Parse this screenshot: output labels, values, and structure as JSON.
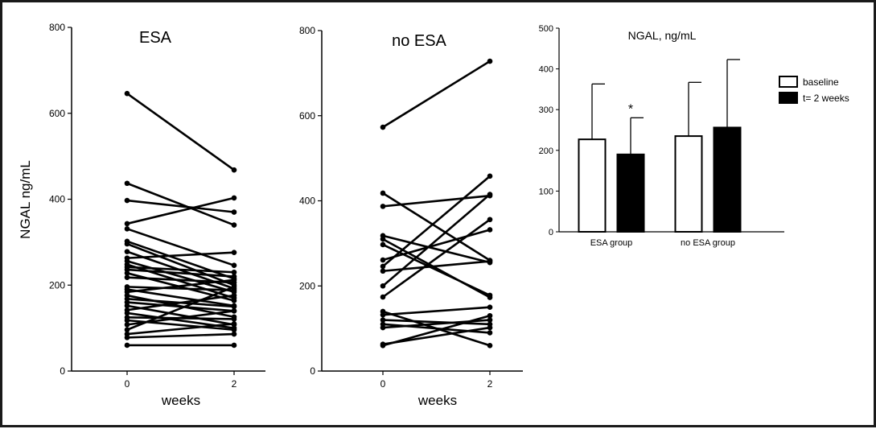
{
  "chart_data": [
    {
      "type": "line",
      "title": "ESA",
      "xlabel": "weeks",
      "ylabel": "NGAL ng/mL",
      "x_ticks": [
        "0",
        "2"
      ],
      "y_ticks": [
        "0",
        "200",
        "400",
        "600",
        "800"
      ],
      "ylim": [
        0,
        800
      ],
      "series": [
        {
          "values": [
            646,
            468
          ]
        },
        {
          "values": [
            437,
            340
          ]
        },
        {
          "values": [
            397,
            370
          ]
        },
        {
          "values": [
            343,
            403
          ]
        },
        {
          "values": [
            331,
            246
          ]
        },
        {
          "values": [
            302,
            215
          ]
        },
        {
          "values": [
            296,
            200
          ]
        },
        {
          "values": [
            278,
            192
          ]
        },
        {
          "values": [
            263,
            276
          ]
        },
        {
          "values": [
            256,
            184
          ]
        },
        {
          "values": [
            248,
            170
          ]
        },
        {
          "values": [
            242,
            230
          ]
        },
        {
          "values": [
            236,
            220
          ]
        },
        {
          "values": [
            228,
            164
          ]
        },
        {
          "values": [
            218,
            206
          ]
        },
        {
          "values": [
            196,
            188
          ]
        },
        {
          "values": [
            190,
            152
          ]
        },
        {
          "values": [
            184,
            212
          ]
        },
        {
          "values": [
            176,
            126
          ]
        },
        {
          "values": [
            168,
            150
          ]
        },
        {
          "values": [
            160,
            140
          ]
        },
        {
          "values": [
            152,
            108
          ]
        },
        {
          "values": [
            142,
            176
          ]
        },
        {
          "values": [
            135,
            100
          ]
        },
        {
          "values": [
            125,
            121
          ]
        },
        {
          "values": [
            118,
            96
          ]
        },
        {
          "values": [
            108,
            140
          ]
        },
        {
          "values": [
            96,
            196
          ]
        },
        {
          "values": [
            86,
            110
          ]
        },
        {
          "values": [
            78,
            86
          ]
        },
        {
          "values": [
            60,
            60
          ]
        }
      ]
    },
    {
      "type": "line",
      "title": "no ESA",
      "xlabel": "weeks",
      "x_ticks": [
        "0",
        "2"
      ],
      "y_ticks": [
        "0",
        "200",
        "400",
        "600",
        "800"
      ],
      "ylim": [
        0,
        800
      ],
      "series": [
        {
          "values": [
            573,
            728
          ]
        },
        {
          "values": [
            418,
            260
          ]
        },
        {
          "values": [
            387,
            412
          ]
        },
        {
          "values": [
            318,
            255
          ]
        },
        {
          "values": [
            310,
            173
          ]
        },
        {
          "values": [
            297,
            178
          ]
        },
        {
          "values": [
            261,
            332
          ]
        },
        {
          "values": [
            246,
            458
          ]
        },
        {
          "values": [
            235,
            258
          ]
        },
        {
          "values": [
            200,
            415
          ]
        },
        {
          "values": [
            174,
            356
          ]
        },
        {
          "values": [
            140,
            60
          ]
        },
        {
          "values": [
            132,
            150
          ]
        },
        {
          "values": [
            120,
            110
          ]
        },
        {
          "values": [
            110,
            90
          ]
        },
        {
          "values": [
            102,
            120
          ]
        },
        {
          "values": [
            63,
            102
          ]
        },
        {
          "values": [
            60,
            130
          ]
        }
      ]
    },
    {
      "type": "bar",
      "title": "NGAL, ng/mL",
      "categories": [
        "ESA group",
        "no ESA group"
      ],
      "y_ticks": [
        "0",
        "100",
        "200",
        "300",
        "400",
        "500"
      ],
      "ylim": [
        0,
        500
      ],
      "legend_position": "right",
      "series": [
        {
          "name": "baseline",
          "color": "#ffffff",
          "values": [
            227,
            235
          ],
          "error_upper": [
            363,
            367
          ]
        },
        {
          "name": "t= 2 weeks",
          "color": "#000000",
          "values": [
            190,
            256
          ],
          "error_upper": [
            280,
            423
          ]
        }
      ],
      "annotations": [
        {
          "text": "*",
          "category": "ESA group",
          "series": "t= 2 weeks"
        }
      ]
    }
  ]
}
